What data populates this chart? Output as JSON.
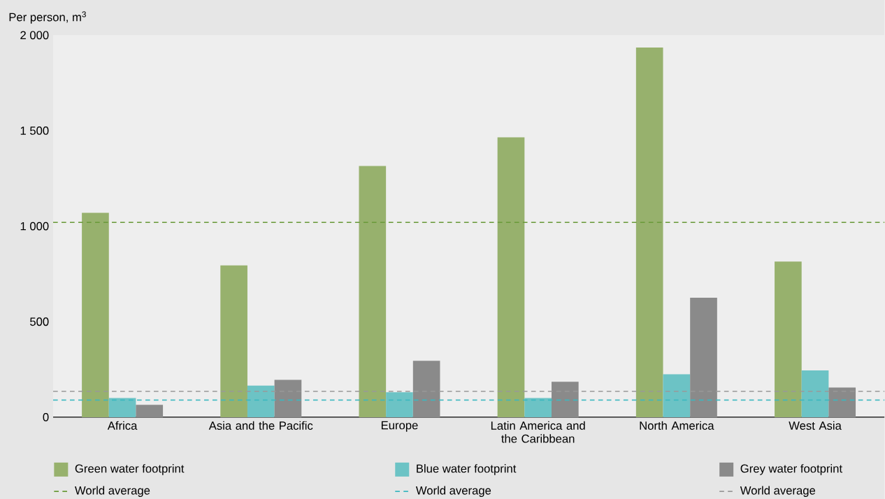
{
  "chart_data": {
    "type": "bar",
    "ylabel": "Per person, m$^{3}$",
    "categories": [
      "Africa",
      "Asia and the Pacific",
      "Europe",
      "Latin America and the Caribbean",
      "North America",
      "West Asia"
    ],
    "series": [
      {
        "name": "Green water footprint",
        "color": "#97b16d",
        "values": [
          1070,
          795,
          1315,
          1465,
          1935,
          815
        ]
      },
      {
        "name": "Blue water footprint",
        "color": "#6cc3c5",
        "values": [
          100,
          165,
          130,
          100,
          225,
          245
        ]
      },
      {
        "name": "Grey water footprint",
        "color": "#8a8a8a",
        "values": [
          65,
          195,
          295,
          185,
          625,
          155
        ]
      }
    ],
    "ref_lines": [
      {
        "axis": "y",
        "value": 1020,
        "label": "World average",
        "color": "#6a9a3a",
        "line_style": "dashed"
      },
      {
        "axis": "y",
        "value": 90,
        "label": "World average",
        "color": "#3bb8c0",
        "line_style": "dashed"
      },
      {
        "axis": "y",
        "value": 135,
        "label": "World average",
        "color": "#999999",
        "line_style": "dashed"
      }
    ],
    "ylim": [
      0,
      2000
    ],
    "yticks": [
      0,
      500,
      {
        "value": 1000,
        "label": "1 000"
      },
      {
        "value": 1500,
        "label": "1 500"
      },
      {
        "value": 2000,
        "label": "2 000"
      }
    ],
    "legend": "bottom"
  }
}
